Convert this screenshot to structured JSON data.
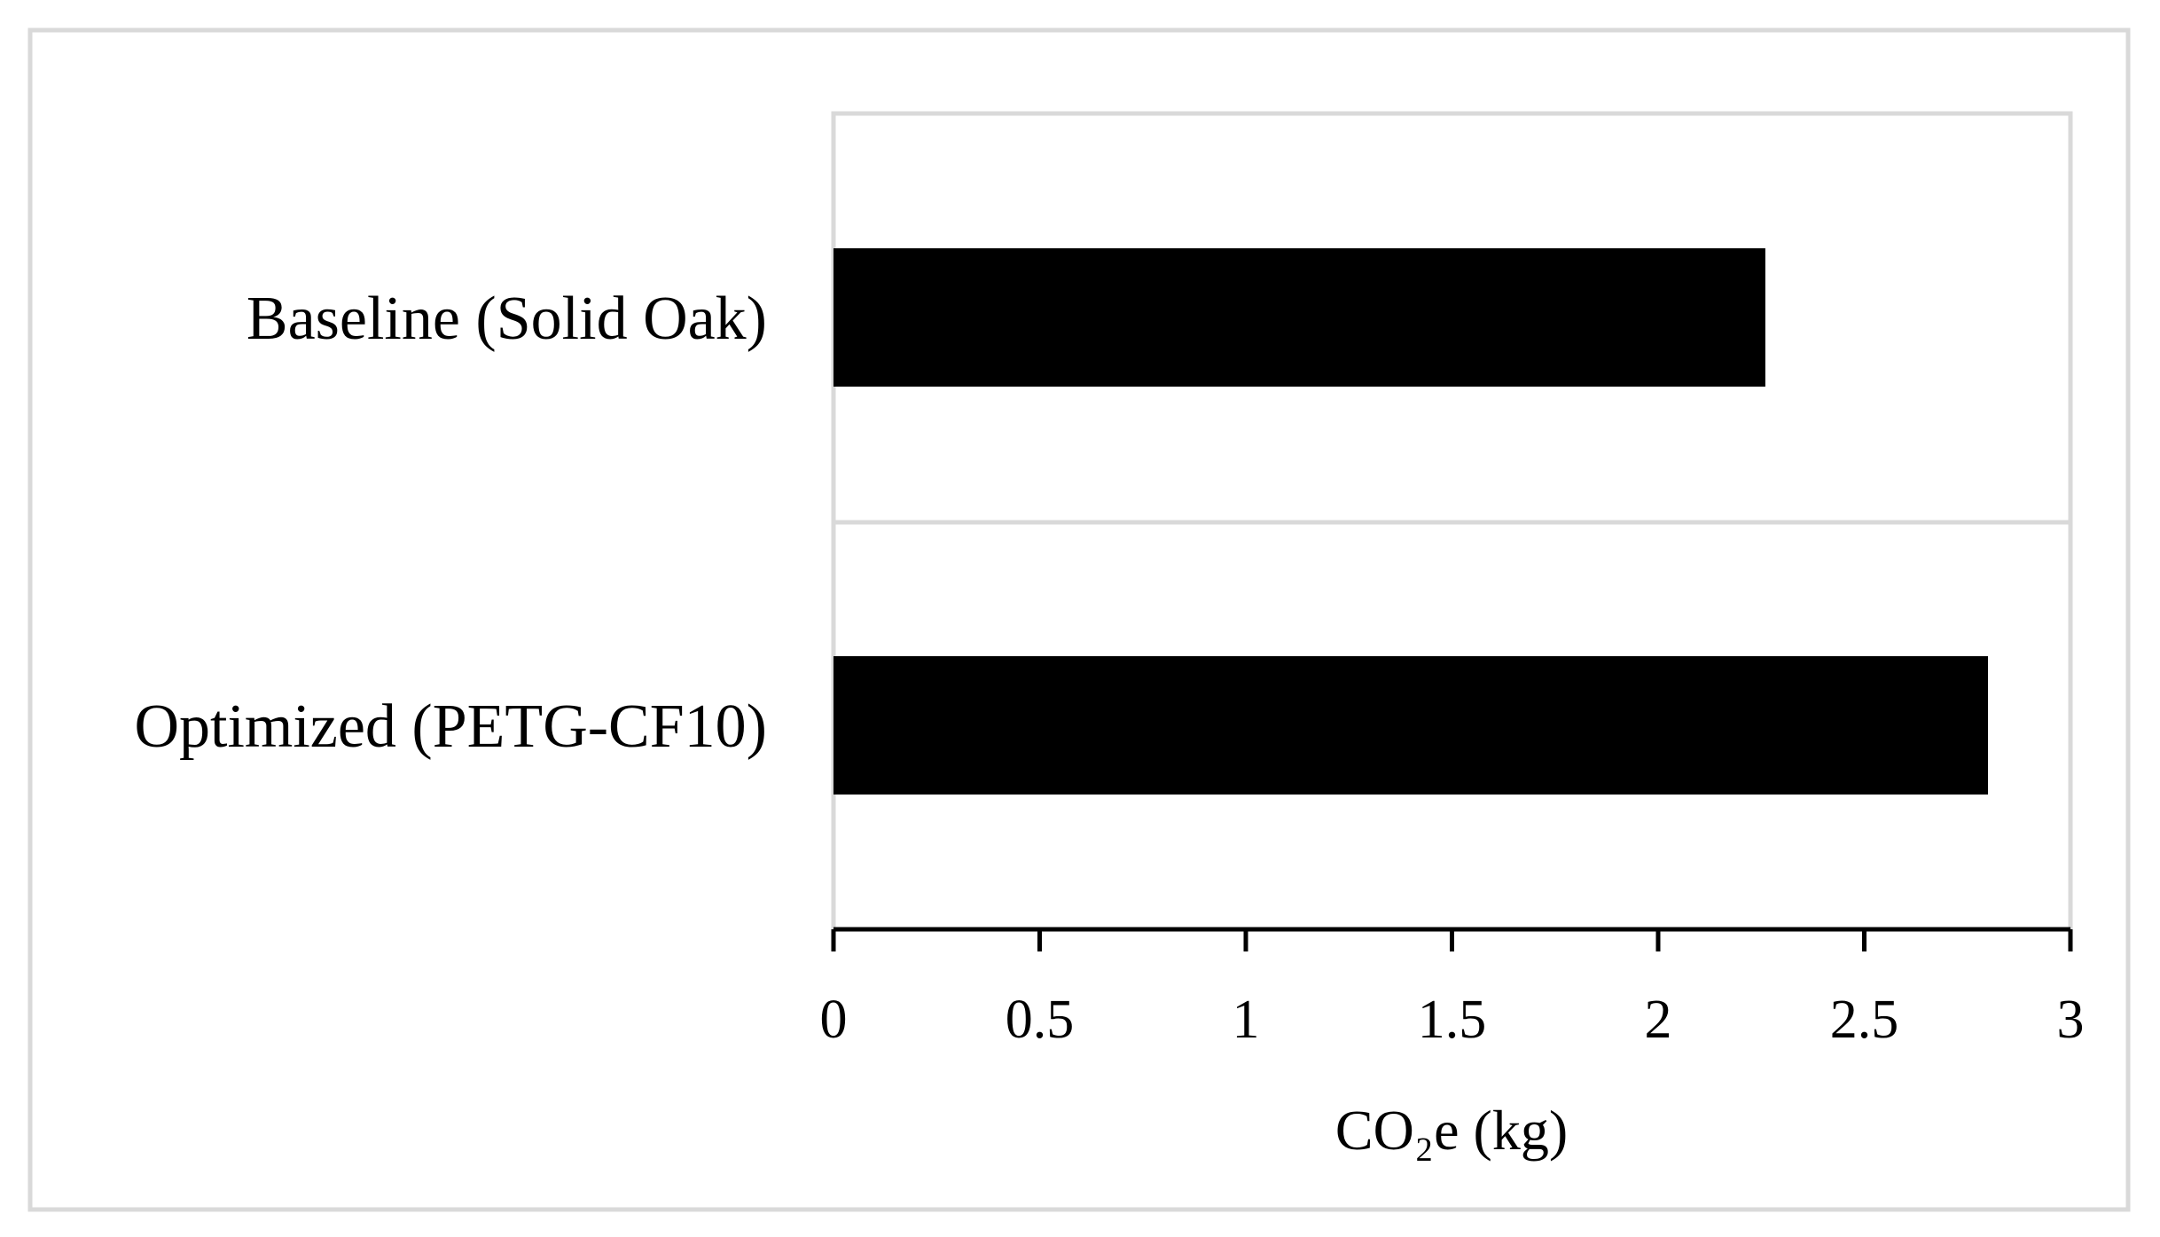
{
  "chart_data": {
    "type": "bar",
    "orientation": "horizontal",
    "categories": [
      "Baseline (Solid Oak)",
      "Optimized (PETG-CF10)"
    ],
    "values": [
      2.26,
      2.8
    ],
    "xlabel": "CO₂e  (kg)",
    "xlim": [
      0,
      3
    ],
    "xticks": [
      "0",
      "0.5",
      "1",
      "1.5",
      "2",
      "2.5",
      "3"
    ],
    "xtick_values": [
      0,
      0.5,
      1,
      1.5,
      2,
      2.5,
      3
    ],
    "grid": "horizontal separator between categories",
    "legend": "none"
  },
  "colors": {
    "bar": "#000000",
    "frame": "#d9d9d9",
    "plot_border": "#d9d9d9",
    "axis": "#000000",
    "background": "#ffffff"
  }
}
